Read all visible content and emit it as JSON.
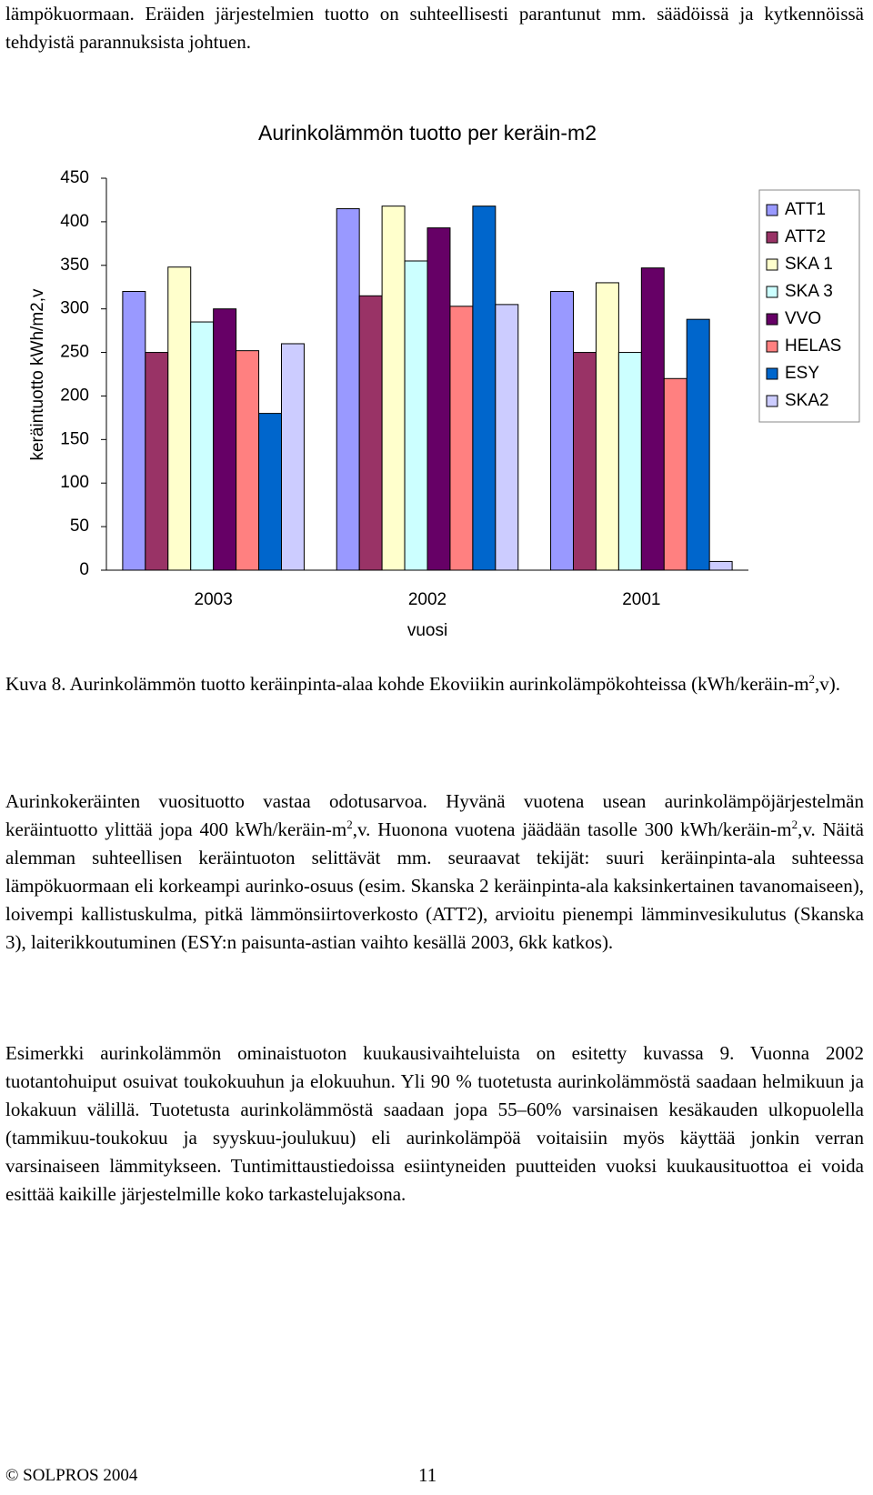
{
  "document": {
    "intro": [
      "lämpökuormaan. Eräiden järjestelmien tuotto on suhteellisesti parantunut mm. säädöissä ja kytkennöissä tehdyistä parannuksista johtuen."
    ],
    "caption": [
      "Kuva 8. Aurinkolämmön tuotto keräinpinta-alaa kohde Ekoviikin aurinkolämpökohteissa (kWh/keräin-m",
      "2",
      ",v)."
    ],
    "paragraph1": [
      "Aurinkokeräinten vuosituotto vastaa odotusarvoa. Hyvänä vuotena usean aurinkolämpöjärjestelmän keräintuotto ylittää jopa 400 kWh/keräin-m",
      "2",
      ",v. Huonona vuotena jäädään tasolle 300 kWh/keräin-m",
      "2",
      ",v. Näitä alemman suhteellisen keräintuoton selittävät mm. seuraavat tekijät: suuri keräinpinta-ala suhteessa lämpökuormaan eli korkeampi aurinko-osuus (esim. Skanska 2 keräinpinta-ala kaksinkertainen tavanomaiseen), loivempi kallistuskulma, pitkä lämmönsiirtoverkosto (ATT2), arvioitu pienempi lämminvesikulutus (Skanska 3), laiterikkoutuminen (ESY:n paisunta-astian vaihto kesällä 2003, 6kk katkos)."
    ],
    "paragraph2": [
      "Esimerkki aurinkolämmön ominaistuoton kuukausivaihteluista on esitetty kuvassa 9. Vuonna 2002 tuotantohuiput osuivat toukokuuhun ja elokuuhun. Yli 90 % tuotetusta aurinkolämmöstä saadaan helmikuun ja lokakuun välillä. Tuotetusta aurinkolämmöstä saadaan jopa 55–60% varsinaisen kesäkauden ulkopuolella (tammikuu-toukokuu ja syyskuu-joulukuu) eli aurinkolämpöä voitaisiin myös käyttää jonkin verran varsinaiseen lämmitykseen.  Tuntimittaustiedoissa esiintyneiden puutteiden vuoksi kuukausituottoa ei voida esittää kaikille järjestelmille koko tarkastelujaksona."
    ],
    "footer_left": "© SOLPROS 2004",
    "page_number": "11"
  },
  "chart_data": {
    "type": "bar",
    "title": "Aurinkolämmön tuotto per keräin-m2",
    "y_label": "keräintuotto kWh/m2,v",
    "x_label": "vuosi",
    "categories": [
      "2003",
      "2002",
      "2001"
    ],
    "series": [
      {
        "name": "ATT1",
        "color": "#9999ff",
        "values": [
          320,
          415,
          320
        ]
      },
      {
        "name": "ATT2",
        "color": "#993366",
        "values": [
          250,
          315,
          250
        ]
      },
      {
        "name": "SKA 1",
        "color": "#ffffcc",
        "values": [
          348,
          418,
          330
        ]
      },
      {
        "name": "SKA 3",
        "color": "#ccffff",
        "values": [
          285,
          355,
          250
        ]
      },
      {
        "name": "VVO",
        "color": "#660066",
        "values": [
          300,
          393,
          347
        ]
      },
      {
        "name": "HELAS",
        "color": "#ff8080",
        "values": [
          252,
          303,
          220
        ]
      },
      {
        "name": "ESY",
        "color": "#0066cc",
        "values": [
          180,
          418,
          288
        ]
      },
      {
        "name": "SKA2",
        "color": "#ccccff",
        "values": [
          260,
          305,
          10
        ]
      }
    ],
    "ylim": [
      0,
      450
    ],
    "yticks": [
      0,
      50,
      100,
      150,
      200,
      250,
      300,
      350,
      400,
      450
    ],
    "grid": false,
    "legend": "right"
  }
}
